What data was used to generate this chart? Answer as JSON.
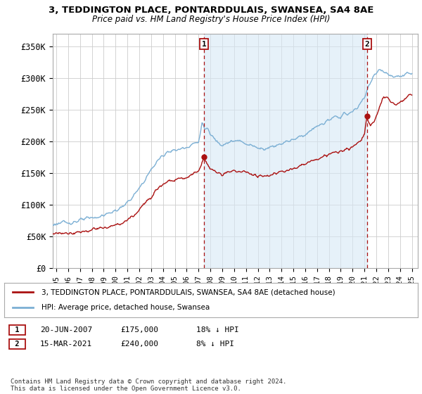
{
  "title": "3, TEDDINGTON PLACE, PONTARDDULAIS, SWANSEA, SA4 8AE",
  "subtitle": "Price paid vs. HM Land Registry's House Price Index (HPI)",
  "ylabel_ticks": [
    "£0",
    "£50K",
    "£100K",
    "£150K",
    "£200K",
    "£250K",
    "£300K",
    "£350K"
  ],
  "ytick_vals": [
    0,
    50000,
    100000,
    150000,
    200000,
    250000,
    300000,
    350000
  ],
  "ylim": [
    0,
    370000
  ],
  "xlim_start": 1994.7,
  "xlim_end": 2025.5,
  "purchase1": {
    "date": 2007.47,
    "price": 175000,
    "label": "1",
    "text": "20-JUN-2007",
    "amount": "£175,000",
    "pct": "18% ↓ HPI"
  },
  "purchase2": {
    "date": 2021.21,
    "price": 240000,
    "label": "2",
    "text": "15-MAR-2021",
    "amount": "£240,000",
    "pct": "8% ↓ HPI"
  },
  "hpi_color": "#7bafd4",
  "hpi_fill_color": "#d6e8f5",
  "price_color": "#aa1111",
  "grid_color": "#cccccc",
  "bg_color": "#ffffff",
  "legend_label_price": "3, TEDDINGTON PLACE, PONTARDDULAIS, SWANSEA, SA4 8AE (detached house)",
  "legend_label_hpi": "HPI: Average price, detached house, Swansea",
  "footnote": "Contains HM Land Registry data © Crown copyright and database right 2024.\nThis data is licensed under the Open Government Licence v3.0.",
  "xtick_years": [
    1995,
    1996,
    1997,
    1998,
    1999,
    2000,
    2001,
    2002,
    2003,
    2004,
    2005,
    2006,
    2007,
    2008,
    2009,
    2010,
    2011,
    2012,
    2013,
    2014,
    2015,
    2016,
    2017,
    2018,
    2019,
    2020,
    2021,
    2022,
    2023,
    2024,
    2025
  ],
  "hpi_anchors": [
    [
      1994.7,
      68000
    ],
    [
      1995.0,
      70000
    ],
    [
      1995.5,
      71000
    ],
    [
      1996.0,
      71500
    ],
    [
      1996.5,
      73000
    ],
    [
      1997.0,
      75000
    ],
    [
      1997.5,
      77000
    ],
    [
      1998.0,
      79000
    ],
    [
      1998.5,
      80500
    ],
    [
      1999.0,
      83000
    ],
    [
      1999.5,
      87000
    ],
    [
      2000.0,
      90000
    ],
    [
      2000.5,
      96000
    ],
    [
      2001.0,
      103000
    ],
    [
      2001.5,
      113000
    ],
    [
      2002.0,
      125000
    ],
    [
      2002.5,
      140000
    ],
    [
      2003.0,
      155000
    ],
    [
      2003.5,
      168000
    ],
    [
      2004.0,
      178000
    ],
    [
      2004.5,
      185000
    ],
    [
      2005.0,
      185000
    ],
    [
      2005.5,
      188000
    ],
    [
      2006.0,
      191000
    ],
    [
      2006.5,
      196000
    ],
    [
      2007.0,
      198000
    ],
    [
      2007.3,
      230000
    ],
    [
      2007.5,
      220000
    ],
    [
      2007.8,
      218000
    ],
    [
      2008.0,
      210000
    ],
    [
      2008.3,
      205000
    ],
    [
      2008.6,
      200000
    ],
    [
      2009.0,
      195000
    ],
    [
      2009.3,
      197000
    ],
    [
      2009.6,
      198000
    ],
    [
      2010.0,
      200000
    ],
    [
      2010.5,
      200000
    ],
    [
      2011.0,
      197000
    ],
    [
      2011.5,
      193000
    ],
    [
      2012.0,
      190000
    ],
    [
      2012.5,
      188000
    ],
    [
      2013.0,
      191000
    ],
    [
      2013.5,
      193000
    ],
    [
      2014.0,
      197000
    ],
    [
      2014.5,
      200000
    ],
    [
      2015.0,
      203000
    ],
    [
      2015.5,
      207000
    ],
    [
      2016.0,
      211000
    ],
    [
      2016.5,
      217000
    ],
    [
      2017.0,
      223000
    ],
    [
      2017.5,
      228000
    ],
    [
      2018.0,
      233000
    ],
    [
      2018.5,
      237000
    ],
    [
      2019.0,
      240000
    ],
    [
      2019.5,
      243000
    ],
    [
      2020.0,
      246000
    ],
    [
      2020.5,
      255000
    ],
    [
      2021.0,
      270000
    ],
    [
      2021.3,
      285000
    ],
    [
      2021.6,
      295000
    ],
    [
      2022.0,
      308000
    ],
    [
      2022.3,
      315000
    ],
    [
      2022.6,
      310000
    ],
    [
      2023.0,
      305000
    ],
    [
      2023.5,
      300000
    ],
    [
      2024.0,
      302000
    ],
    [
      2024.5,
      305000
    ],
    [
      2025.0,
      308000
    ]
  ],
  "price_anchors": [
    [
      1994.7,
      53000
    ],
    [
      1995.0,
      54000
    ],
    [
      1995.5,
      54500
    ],
    [
      1996.0,
      55000
    ],
    [
      1996.5,
      55500
    ],
    [
      1997.0,
      57000
    ],
    [
      1997.5,
      58000
    ],
    [
      1998.0,
      60000
    ],
    [
      1998.5,
      62000
    ],
    [
      1999.0,
      63000
    ],
    [
      1999.5,
      65000
    ],
    [
      2000.0,
      67000
    ],
    [
      2000.5,
      70000
    ],
    [
      2001.0,
      75000
    ],
    [
      2001.5,
      82000
    ],
    [
      2002.0,
      91000
    ],
    [
      2002.5,
      103000
    ],
    [
      2003.0,
      114000
    ],
    [
      2003.5,
      125000
    ],
    [
      2004.0,
      133000
    ],
    [
      2004.5,
      138000
    ],
    [
      2005.0,
      139000
    ],
    [
      2005.5,
      141000
    ],
    [
      2006.0,
      143000
    ],
    [
      2006.5,
      148000
    ],
    [
      2007.0,
      153000
    ],
    [
      2007.4,
      170000
    ],
    [
      2007.47,
      175000
    ],
    [
      2007.6,
      170000
    ],
    [
      2007.8,
      163000
    ],
    [
      2008.0,
      157000
    ],
    [
      2008.3,
      153000
    ],
    [
      2008.6,
      150000
    ],
    [
      2009.0,
      148000
    ],
    [
      2009.3,
      150000
    ],
    [
      2009.6,
      151000
    ],
    [
      2010.0,
      153000
    ],
    [
      2010.5,
      153000
    ],
    [
      2011.0,
      151000
    ],
    [
      2011.5,
      148000
    ],
    [
      2012.0,
      146000
    ],
    [
      2012.5,
      145000
    ],
    [
      2013.0,
      147000
    ],
    [
      2013.5,
      149000
    ],
    [
      2014.0,
      152000
    ],
    [
      2014.5,
      155000
    ],
    [
      2015.0,
      157000
    ],
    [
      2015.5,
      161000
    ],
    [
      2016.0,
      164000
    ],
    [
      2016.5,
      168000
    ],
    [
      2017.0,
      172000
    ],
    [
      2017.5,
      176000
    ],
    [
      2018.0,
      179000
    ],
    [
      2018.5,
      182000
    ],
    [
      2019.0,
      184000
    ],
    [
      2019.5,
      187000
    ],
    [
      2020.0,
      190000
    ],
    [
      2020.5,
      198000
    ],
    [
      2021.0,
      210000
    ],
    [
      2021.15,
      232000
    ],
    [
      2021.21,
      240000
    ],
    [
      2021.3,
      232000
    ],
    [
      2021.5,
      225000
    ],
    [
      2021.8,
      230000
    ],
    [
      2022.0,
      240000
    ],
    [
      2022.3,
      255000
    ],
    [
      2022.5,
      265000
    ],
    [
      2022.8,
      270000
    ],
    [
      2023.0,
      268000
    ],
    [
      2023.3,
      260000
    ],
    [
      2023.6,
      258000
    ],
    [
      2024.0,
      262000
    ],
    [
      2024.5,
      268000
    ],
    [
      2025.0,
      275000
    ]
  ]
}
